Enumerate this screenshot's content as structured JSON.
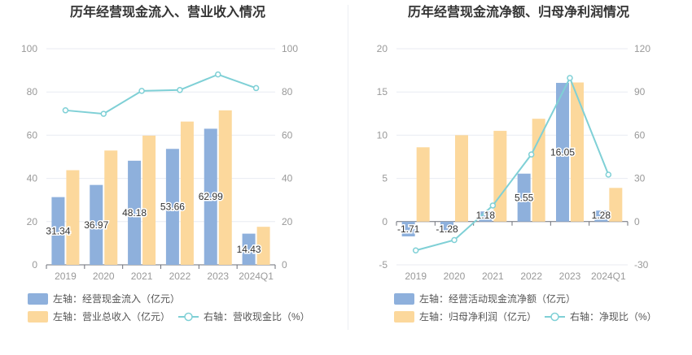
{
  "colors": {
    "bar_left": "#8eb0dc",
    "bar_right": "#fcd89c",
    "line": "#7fd0d6",
    "grid": "#e8ebf2",
    "axis_text": "#999999",
    "title": "#333333",
    "legend_text": "#555555"
  },
  "chart_data": [
    {
      "type": "bar",
      "title": "历年经营现金流入、营业收入情况",
      "categories": [
        "2019",
        "2020",
        "2021",
        "2022",
        "2023",
        "2024Q1"
      ],
      "y_left": {
        "lim": [
          0,
          100
        ],
        "ticks": [
          "0",
          "20",
          "40",
          "60",
          "80",
          "100"
        ]
      },
      "y_right": {
        "lim": [
          0,
          100
        ],
        "ticks": [
          "0",
          "20",
          "40",
          "60",
          "80",
          "100"
        ]
      },
      "grid": true,
      "legend_position": "bottom-left",
      "series": [
        {
          "name": "左轴：经营现金流入（亿元）",
          "kind": "bar",
          "axis": "left",
          "values": [
            31.34,
            36.97,
            48.18,
            53.66,
            62.99,
            14.43
          ],
          "labels": [
            "31.34",
            "36.97",
            "48.18",
            "53.66",
            "62.99",
            "14.43"
          ]
        },
        {
          "name": "左轴：营业总收入（亿元）",
          "kind": "bar",
          "axis": "left",
          "values": [
            43.8,
            52.9,
            59.8,
            66.3,
            71.5,
            17.6
          ]
        },
        {
          "name": "右轴：营收现金比（%）",
          "kind": "line",
          "axis": "right",
          "values": [
            71.5,
            69.9,
            80.5,
            80.9,
            88.1,
            81.8
          ]
        }
      ]
    },
    {
      "type": "bar",
      "title": "历年经营现金流净额、归母净利润情况",
      "categories": [
        "2019",
        "2020",
        "2021",
        "2022",
        "2023",
        "2024Q1"
      ],
      "y_left": {
        "lim": [
          -5,
          20
        ],
        "ticks": [
          "-5",
          "0",
          "5",
          "10",
          "15",
          "20"
        ]
      },
      "y_right": {
        "lim": [
          -30,
          120
        ],
        "ticks": [
          "-30",
          "0",
          "30",
          "60",
          "90",
          "120"
        ]
      },
      "grid": true,
      "legend_position": "bottom-left",
      "series": [
        {
          "name": "左轴：经营活动现金流净额（亿元）",
          "kind": "bar",
          "axis": "left",
          "values": [
            -1.71,
            -1.28,
            1.18,
            5.55,
            16.05,
            1.28
          ],
          "labels": [
            "-1.71",
            "-1.28",
            "1.18",
            "5.55",
            "16.05",
            "1.28"
          ]
        },
        {
          "name": "左轴：归母净利润（亿元）",
          "kind": "bar",
          "axis": "left",
          "values": [
            8.6,
            10.0,
            10.5,
            11.9,
            16.1,
            3.9
          ]
        },
        {
          "name": "右轴：净现比（%）",
          "kind": "line",
          "axis": "right",
          "values": [
            -20.0,
            -12.8,
            11.2,
            46.6,
            99.7,
            32.6
          ]
        }
      ]
    }
  ]
}
